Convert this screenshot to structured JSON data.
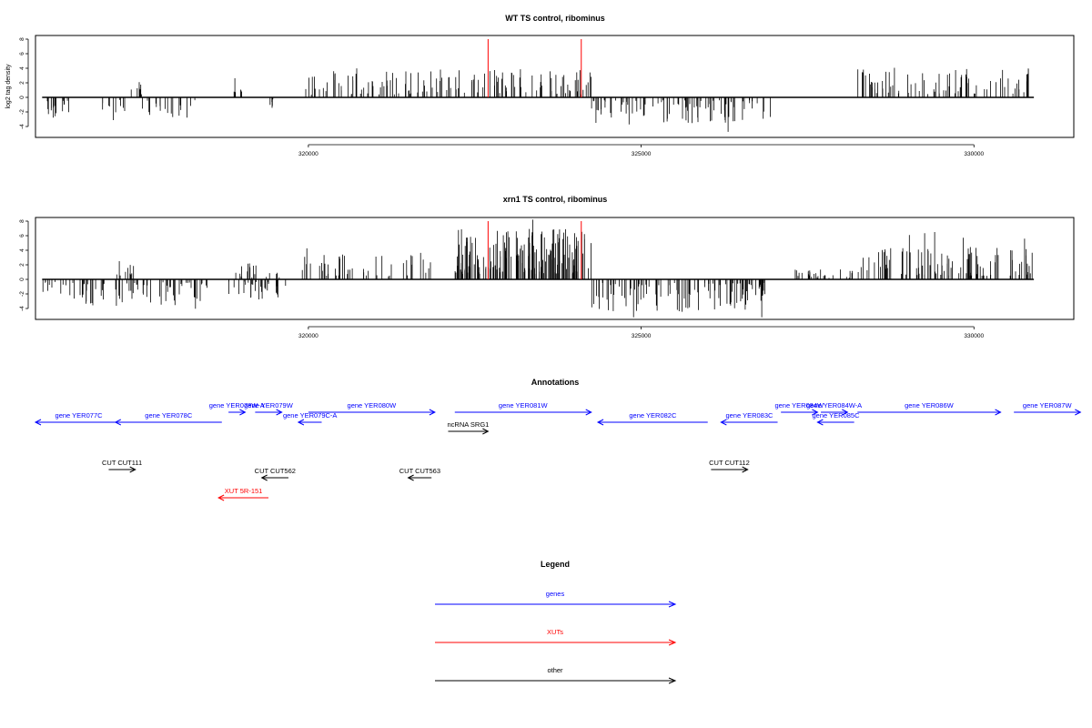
{
  "colors": {
    "axis": "#000000",
    "bars": "#000000",
    "marker": "#ff0000",
    "gene": "#0000ff",
    "xut": "#ff0000",
    "other": "#000000"
  },
  "chart_data": [
    {
      "type": "bar",
      "title": "WT TS control, ribominus",
      "ylabel": "log2 tag density",
      "xlabel": "",
      "xlim": [
        315900,
        331500
      ],
      "ylim": [
        -5.5,
        8.5
      ],
      "yticks": [
        -4,
        -2,
        0,
        2,
        4,
        6,
        8
      ],
      "xticks": [
        320000,
        325000,
        330000
      ],
      "xtick_labels": [
        "320000",
        "325000",
        "330000"
      ],
      "marker_positions": [
        322700,
        324100
      ],
      "grid": false,
      "segments": [
        {
          "start": 316000,
          "end": 316450,
          "sign": -1,
          "mag": 2.2
        },
        {
          "start": 316900,
          "end": 317300,
          "sign": -1,
          "mag": 2.4
        },
        {
          "start": 317300,
          "end": 317500,
          "sign": 1,
          "mag": 1.5
        },
        {
          "start": 317500,
          "end": 318350,
          "sign": -1,
          "mag": 2.0
        },
        {
          "start": 318850,
          "end": 319000,
          "sign": 1,
          "mag": 2.4
        },
        {
          "start": 319350,
          "end": 319500,
          "sign": -1,
          "mag": 1.8
        },
        {
          "start": 319950,
          "end": 320300,
          "sign": 1,
          "mag": 2.2
        },
        {
          "start": 320300,
          "end": 322150,
          "sign": 1,
          "mag": 2.6
        },
        {
          "start": 322200,
          "end": 324250,
          "sign": 1,
          "mag": 2.8
        },
        {
          "start": 324250,
          "end": 326950,
          "sign": -1,
          "mag": 2.6
        },
        {
          "start": 328250,
          "end": 330900,
          "sign": 1,
          "mag": 3.0
        }
      ]
    },
    {
      "type": "bar",
      "title": "xrn1 TS control, ribominus",
      "ylabel": "",
      "xlabel": "",
      "xlim": [
        315900,
        331500
      ],
      "ylim": [
        -5.5,
        8.5
      ],
      "yticks": [
        -4,
        -2,
        0,
        2,
        4,
        6,
        8
      ],
      "xticks": [
        320000,
        325000,
        330000
      ],
      "xtick_labels": [
        "320000",
        "325000",
        "330000"
      ],
      "marker_positions": [
        322700,
        324100
      ],
      "grid": false,
      "segments": [
        {
          "start": 316000,
          "end": 316600,
          "sign": -1,
          "mag": 2.2
        },
        {
          "start": 316600,
          "end": 318500,
          "sign": -1,
          "mag": 2.6
        },
        {
          "start": 317100,
          "end": 317400,
          "sign": 1,
          "mag": 1.8
        },
        {
          "start": 318800,
          "end": 319700,
          "sign": -1,
          "mag": 2.0
        },
        {
          "start": 318900,
          "end": 319600,
          "sign": 1,
          "mag": 1.6
        },
        {
          "start": 319900,
          "end": 321900,
          "sign": 1,
          "mag": 2.4
        },
        {
          "start": 322200,
          "end": 324250,
          "sign": 1,
          "mag": 5.0
        },
        {
          "start": 324250,
          "end": 326900,
          "sign": -1,
          "mag": 3.2
        },
        {
          "start": 327300,
          "end": 328200,
          "sign": 1,
          "mag": 1.0
        },
        {
          "start": 328250,
          "end": 330900,
          "sign": 1,
          "mag": 3.2
        }
      ]
    }
  ],
  "annotations": {
    "title": "Annotations",
    "genes": [
      {
        "label": "gene YER077C",
        "strand": "-",
        "start": 315900,
        "end": 317200,
        "row": 2
      },
      {
        "label": "gene YER078C",
        "strand": "-",
        "start": 317100,
        "end": 318700,
        "row": 2
      },
      {
        "label": "gene YER078W-A",
        "strand": "+",
        "start": 318800,
        "end": 319050,
        "row": 1
      },
      {
        "label": "gene YER079W",
        "strand": "+",
        "start": 319200,
        "end": 319600,
        "row": 1
      },
      {
        "label": "gene YER079C-A",
        "strand": "-",
        "start": 319850,
        "end": 320200,
        "row": 2
      },
      {
        "label": "gene YER080W",
        "strand": "+",
        "start": 320000,
        "end": 321900,
        "row": 1
      },
      {
        "label": "gene YER081W",
        "strand": "+",
        "start": 322200,
        "end": 324250,
        "row": 1
      },
      {
        "label": "gene YER082C",
        "strand": "-",
        "start": 324350,
        "end": 326000,
        "row": 2
      },
      {
        "label": "gene YER083C",
        "strand": "-",
        "start": 326200,
        "end": 327050,
        "row": 2
      },
      {
        "label": "gene YER084W",
        "strand": "+",
        "start": 327100,
        "end": 327650,
        "row": 1
      },
      {
        "label": "gene YER084W-A",
        "strand": "+",
        "start": 327700,
        "end": 328100,
        "row": 1
      },
      {
        "label": "gene YER085C",
        "strand": "-",
        "start": 327650,
        "end": 328200,
        "row": 2
      },
      {
        "label": "gene YER086W",
        "strand": "+",
        "start": 328250,
        "end": 330400,
        "row": 1
      },
      {
        "label": "gene YER087W",
        "strand": "+",
        "start": 330600,
        "end": 331600,
        "row": 1
      }
    ],
    "others": [
      {
        "label": "ncRNA SRG1",
        "strand": "+",
        "start": 322100,
        "end": 322700,
        "row": 3
      },
      {
        "label": "CUT CUT111",
        "strand": "+",
        "start": 317000,
        "end": 317400,
        "row": 4
      },
      {
        "label": "CUT CUT562",
        "strand": "-",
        "start": 319300,
        "end": 319700,
        "row": 5
      },
      {
        "label": "CUT CUT563",
        "strand": "-",
        "start": 321500,
        "end": 321850,
        "row": 5
      },
      {
        "label": "CUT CUT112",
        "strand": "+",
        "start": 326050,
        "end": 326600,
        "row": 4
      }
    ],
    "xuts": [
      {
        "label": "XUT 5R-151",
        "strand": "-",
        "start": 318650,
        "end": 319400,
        "row": 6
      }
    ]
  },
  "legend": {
    "title": "Legend",
    "entries": [
      {
        "label": "genes",
        "color_key": "gene"
      },
      {
        "label": "XUTs",
        "color_key": "xut"
      },
      {
        "label": "other",
        "color_key": "other"
      }
    ]
  }
}
